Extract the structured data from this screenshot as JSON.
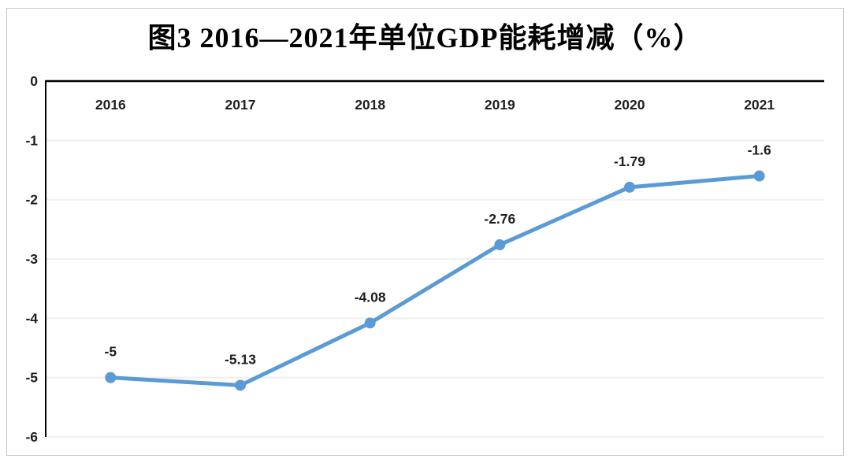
{
  "chart_data": {
    "type": "line",
    "title": "图3 2016—2021年单位GDP能耗增减（%）",
    "categories": [
      "2016",
      "2017",
      "2018",
      "2019",
      "2020",
      "2021"
    ],
    "values": [
      -5,
      -5.13,
      -4.08,
      -2.76,
      -1.79,
      -1.6
    ],
    "point_labels": [
      "-5",
      "-5.13",
      "-4.08",
      "-2.76",
      "-1.79",
      "-1.6"
    ],
    "xlabel": "",
    "ylabel": "",
    "ylim": [
      -6,
      0
    ],
    "yticks": [
      0,
      -1,
      -2,
      -3,
      -4,
      -5,
      -6
    ],
    "ytick_labels": [
      "0",
      "-1",
      "-2",
      "-3",
      "-4",
      "-5",
      "-6"
    ],
    "grid": true,
    "legend_position": "none",
    "x_axis_label_position": "top",
    "line_color": "#5B9BD5",
    "marker": "circle",
    "text_color": "#1f1f1f",
    "gridline_color": "#efefef",
    "axis_color": "#000000",
    "figure_border_color": "#c9c9c9",
    "background_color": "#ffffff"
  }
}
